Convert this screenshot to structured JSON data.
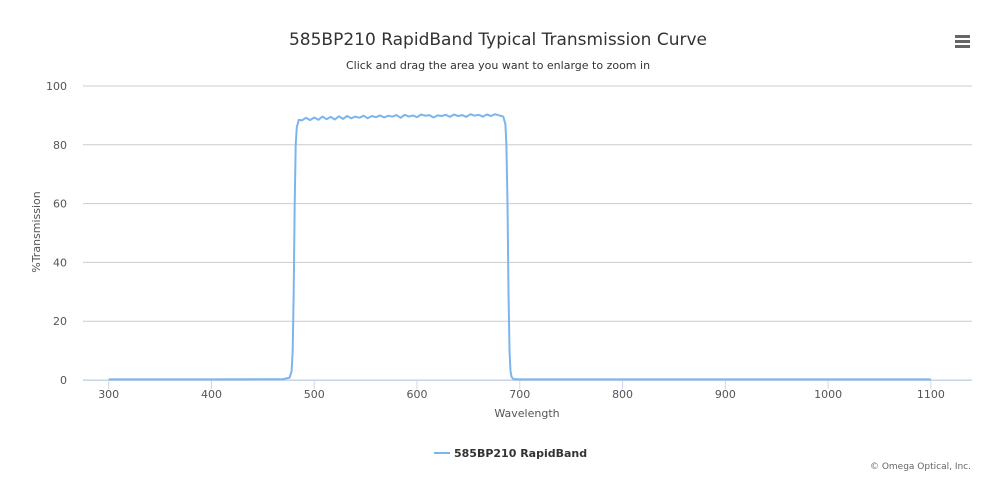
{
  "chart_data": {
    "type": "line",
    "title": "585BP210 RapidBand Typical Transmission Curve",
    "subtitle": "Click and drag the area you want to enlarge to zoom in",
    "xlabel": "Wavelength",
    "ylabel": "%Transmission",
    "xlim": [
      275,
      1140
    ],
    "ylim": [
      0,
      100
    ],
    "x_ticks": [
      300,
      400,
      500,
      600,
      700,
      800,
      900,
      1000,
      1100
    ],
    "y_ticks": [
      0,
      20,
      40,
      60,
      80,
      100
    ],
    "grid": "horizontal",
    "legend_position": "bottom-center",
    "series": [
      {
        "name": "585BP210 RapidBand",
        "color": "#7cb5ec",
        "x": [
          300,
          400,
          470,
          476,
          478,
          479,
          480,
          481,
          482,
          483,
          485,
          488,
          492,
          496,
          500,
          504,
          508,
          512,
          516,
          520,
          524,
          528,
          532,
          536,
          540,
          544,
          548,
          552,
          556,
          560,
          564,
          568,
          572,
          576,
          580,
          584,
          588,
          592,
          596,
          600,
          604,
          608,
          612,
          616,
          620,
          624,
          628,
          632,
          636,
          640,
          644,
          648,
          652,
          656,
          660,
          664,
          668,
          672,
          676,
          680,
          684,
          686,
          687,
          688,
          689,
          690,
          691,
          692,
          694,
          700,
          800,
          900,
          1000,
          1100
        ],
        "y": [
          0.2,
          0.2,
          0.3,
          0.8,
          3,
          10,
          30,
          60,
          80,
          86,
          88.5,
          88.3,
          89.2,
          88.4,
          89.3,
          88.5,
          89.6,
          88.7,
          89.5,
          88.6,
          89.7,
          88.8,
          89.8,
          89.0,
          89.6,
          89.2,
          89.9,
          89.0,
          89.8,
          89.4,
          90.0,
          89.3,
          89.9,
          89.6,
          90.1,
          89.2,
          90.2,
          89.6,
          90.0,
          89.4,
          90.3,
          89.9,
          90.1,
          89.3,
          90.0,
          89.8,
          90.2,
          89.5,
          90.3,
          89.8,
          90.1,
          89.5,
          90.4,
          89.9,
          90.2,
          89.6,
          90.3,
          89.8,
          90.4,
          90.0,
          89.6,
          87,
          80,
          60,
          30,
          10,
          3,
          1,
          0.3,
          0.2,
          0.2,
          0.2,
          0.2,
          0.2
        ]
      }
    ]
  },
  "menu": {
    "icon": "hamburger-menu-icon"
  },
  "credits": "© Omega Optical, Inc."
}
